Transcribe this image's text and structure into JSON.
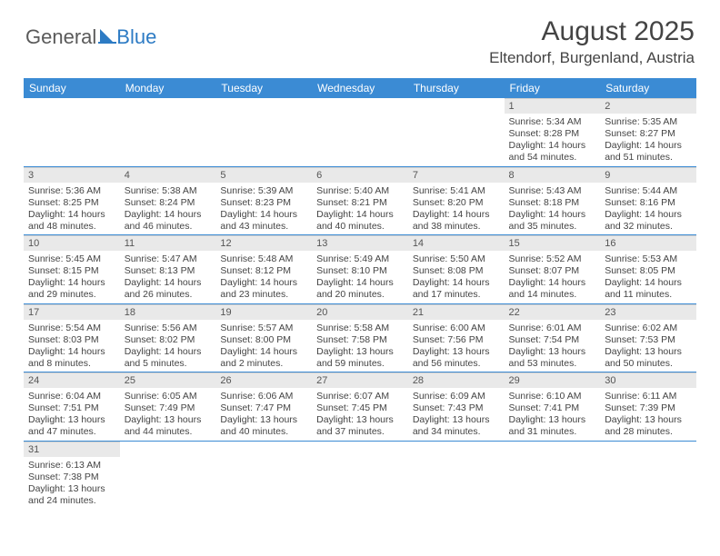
{
  "brand": {
    "part1": "General",
    "part2": "Blue"
  },
  "title": "August 2025",
  "location": "Eltendorf, Burgenland, Austria",
  "header_bg": "#3b8bd4",
  "daynum_bg": "#e9e9e9",
  "days": [
    "Sunday",
    "Monday",
    "Tuesday",
    "Wednesday",
    "Thursday",
    "Friday",
    "Saturday"
  ],
  "weeks": [
    [
      null,
      null,
      null,
      null,
      null,
      {
        "n": "1",
        "sr": "5:34 AM",
        "ss": "8:28 PM",
        "dl": "14 hours and 54 minutes."
      },
      {
        "n": "2",
        "sr": "5:35 AM",
        "ss": "8:27 PM",
        "dl": "14 hours and 51 minutes."
      }
    ],
    [
      {
        "n": "3",
        "sr": "5:36 AM",
        "ss": "8:25 PM",
        "dl": "14 hours and 48 minutes."
      },
      {
        "n": "4",
        "sr": "5:38 AM",
        "ss": "8:24 PM",
        "dl": "14 hours and 46 minutes."
      },
      {
        "n": "5",
        "sr": "5:39 AM",
        "ss": "8:23 PM",
        "dl": "14 hours and 43 minutes."
      },
      {
        "n": "6",
        "sr": "5:40 AM",
        "ss": "8:21 PM",
        "dl": "14 hours and 40 minutes."
      },
      {
        "n": "7",
        "sr": "5:41 AM",
        "ss": "8:20 PM",
        "dl": "14 hours and 38 minutes."
      },
      {
        "n": "8",
        "sr": "5:43 AM",
        "ss": "8:18 PM",
        "dl": "14 hours and 35 minutes."
      },
      {
        "n": "9",
        "sr": "5:44 AM",
        "ss": "8:16 PM",
        "dl": "14 hours and 32 minutes."
      }
    ],
    [
      {
        "n": "10",
        "sr": "5:45 AM",
        "ss": "8:15 PM",
        "dl": "14 hours and 29 minutes."
      },
      {
        "n": "11",
        "sr": "5:47 AM",
        "ss": "8:13 PM",
        "dl": "14 hours and 26 minutes."
      },
      {
        "n": "12",
        "sr": "5:48 AM",
        "ss": "8:12 PM",
        "dl": "14 hours and 23 minutes."
      },
      {
        "n": "13",
        "sr": "5:49 AM",
        "ss": "8:10 PM",
        "dl": "14 hours and 20 minutes."
      },
      {
        "n": "14",
        "sr": "5:50 AM",
        "ss": "8:08 PM",
        "dl": "14 hours and 17 minutes."
      },
      {
        "n": "15",
        "sr": "5:52 AM",
        "ss": "8:07 PM",
        "dl": "14 hours and 14 minutes."
      },
      {
        "n": "16",
        "sr": "5:53 AM",
        "ss": "8:05 PM",
        "dl": "14 hours and 11 minutes."
      }
    ],
    [
      {
        "n": "17",
        "sr": "5:54 AM",
        "ss": "8:03 PM",
        "dl": "14 hours and 8 minutes."
      },
      {
        "n": "18",
        "sr": "5:56 AM",
        "ss": "8:02 PM",
        "dl": "14 hours and 5 minutes."
      },
      {
        "n": "19",
        "sr": "5:57 AM",
        "ss": "8:00 PM",
        "dl": "14 hours and 2 minutes."
      },
      {
        "n": "20",
        "sr": "5:58 AM",
        "ss": "7:58 PM",
        "dl": "13 hours and 59 minutes."
      },
      {
        "n": "21",
        "sr": "6:00 AM",
        "ss": "7:56 PM",
        "dl": "13 hours and 56 minutes."
      },
      {
        "n": "22",
        "sr": "6:01 AM",
        "ss": "7:54 PM",
        "dl": "13 hours and 53 minutes."
      },
      {
        "n": "23",
        "sr": "6:02 AM",
        "ss": "7:53 PM",
        "dl": "13 hours and 50 minutes."
      }
    ],
    [
      {
        "n": "24",
        "sr": "6:04 AM",
        "ss": "7:51 PM",
        "dl": "13 hours and 47 minutes."
      },
      {
        "n": "25",
        "sr": "6:05 AM",
        "ss": "7:49 PM",
        "dl": "13 hours and 44 minutes."
      },
      {
        "n": "26",
        "sr": "6:06 AM",
        "ss": "7:47 PM",
        "dl": "13 hours and 40 minutes."
      },
      {
        "n": "27",
        "sr": "6:07 AM",
        "ss": "7:45 PM",
        "dl": "13 hours and 37 minutes."
      },
      {
        "n": "28",
        "sr": "6:09 AM",
        "ss": "7:43 PM",
        "dl": "13 hours and 34 minutes."
      },
      {
        "n": "29",
        "sr": "6:10 AM",
        "ss": "7:41 PM",
        "dl": "13 hours and 31 minutes."
      },
      {
        "n": "30",
        "sr": "6:11 AM",
        "ss": "7:39 PM",
        "dl": "13 hours and 28 minutes."
      }
    ],
    [
      {
        "n": "31",
        "sr": "6:13 AM",
        "ss": "7:38 PM",
        "dl": "13 hours and 24 minutes."
      },
      null,
      null,
      null,
      null,
      null,
      null
    ]
  ],
  "labels": {
    "sunrise": "Sunrise:",
    "sunset": "Sunset:",
    "daylight": "Daylight:"
  }
}
